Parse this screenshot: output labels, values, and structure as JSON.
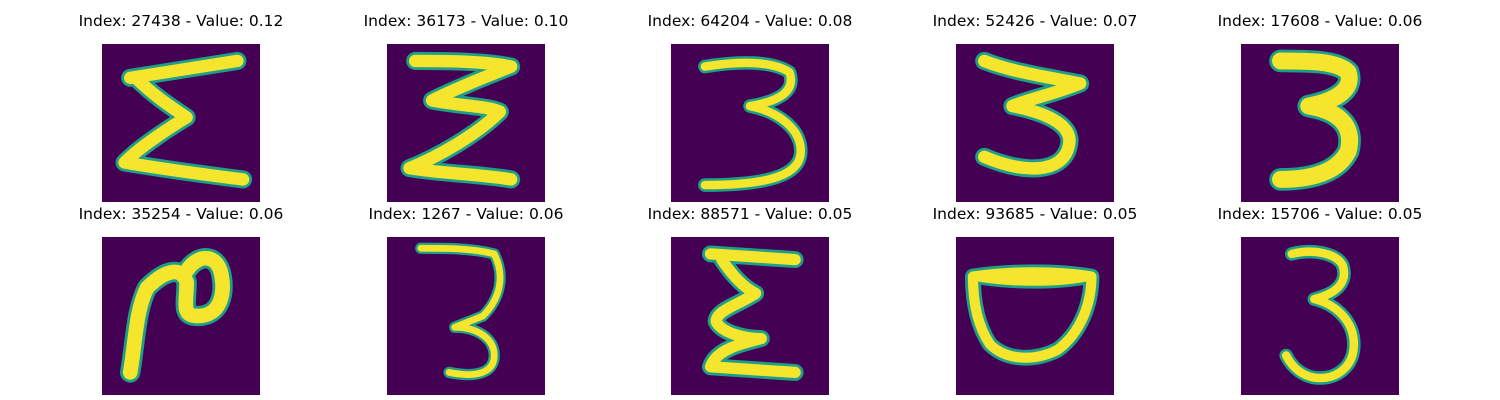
{
  "figure": {
    "colors": {
      "background": "#440154",
      "stroke_core": "#f5e52d",
      "stroke_edge": "#1f9e89",
      "stroke_mid": "#7ad151"
    },
    "panels": [
      {
        "title": "Index: 27438 - Value: 0.12",
        "index": 27438,
        "value": 0.12,
        "glyph": "sigma-like 3"
      },
      {
        "title": "Index: 36173 - Value: 0.10",
        "index": 36173,
        "value": 0.1,
        "glyph": "zigzag 3"
      },
      {
        "title": "Index: 64204 - Value: 0.08",
        "index": 64204,
        "value": 0.08,
        "glyph": "3"
      },
      {
        "title": "Index: 52426 - Value: 0.07",
        "index": 52426,
        "value": 0.07,
        "glyph": "3"
      },
      {
        "title": "Index: 17608 - Value: 0.06",
        "index": 17608,
        "value": 0.06,
        "glyph": "3"
      },
      {
        "title": "Index: 35254 - Value: 0.06",
        "index": 35254,
        "value": 0.06,
        "glyph": "2-like"
      },
      {
        "title": "Index: 1267 - Value: 0.06",
        "index": 1267,
        "value": 0.06,
        "glyph": "3"
      },
      {
        "title": "Index: 88571 - Value: 0.05",
        "index": 88571,
        "value": 0.05,
        "glyph": "sigma-like 3"
      },
      {
        "title": "Index: 93685 - Value: 0.05",
        "index": 93685,
        "value": 0.05,
        "glyph": "cup shape"
      },
      {
        "title": "Index: 15706 - Value: 0.05",
        "index": 15706,
        "value": 0.05,
        "glyph": "3"
      }
    ]
  }
}
